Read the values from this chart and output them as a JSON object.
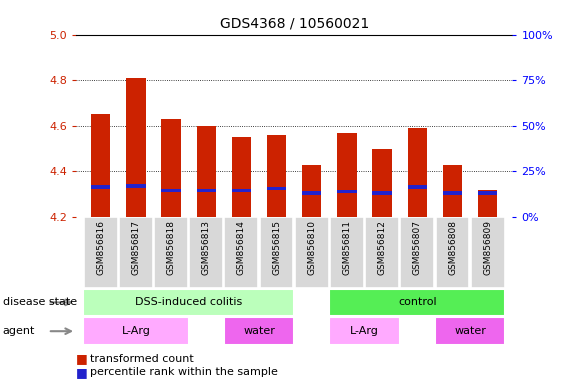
{
  "title": "GDS4368 / 10560021",
  "samples": [
    "GSM856816",
    "GSM856817",
    "GSM856818",
    "GSM856813",
    "GSM856814",
    "GSM856815",
    "GSM856810",
    "GSM856811",
    "GSM856812",
    "GSM856807",
    "GSM856808",
    "GSM856809"
  ],
  "bar_bottoms": [
    4.2,
    4.2,
    4.2,
    4.2,
    4.2,
    4.2,
    4.2,
    4.2,
    4.2,
    4.2,
    4.2,
    4.2
  ],
  "bar_tops": [
    4.65,
    4.81,
    4.63,
    4.6,
    4.55,
    4.56,
    4.43,
    4.57,
    4.5,
    4.59,
    4.43,
    4.32
  ],
  "percentile_vals": [
    4.332,
    4.336,
    4.316,
    4.316,
    4.316,
    4.326,
    4.306,
    4.311,
    4.306,
    4.332,
    4.306,
    4.306
  ],
  "ylim_left": [
    4.2,
    5.0
  ],
  "yticks_left": [
    4.2,
    4.4,
    4.6,
    4.8,
    5.0
  ],
  "yticks_right": [
    0,
    25,
    50,
    75,
    100
  ],
  "bar_color": "#cc2200",
  "percentile_color": "#2222cc",
  "bar_width": 0.55,
  "disease_state_labels": [
    "DSS-induced colitis",
    "control"
  ],
  "disease_state_xmins": [
    -0.5,
    6.5
  ],
  "disease_state_xmaxs": [
    5.5,
    11.5
  ],
  "agent_labels": [
    "L-Arg",
    "water",
    "L-Arg",
    "water"
  ],
  "agent_xmins": [
    -0.5,
    3.5,
    6.5,
    9.5
  ],
  "agent_xmaxs": [
    2.5,
    5.5,
    8.5,
    11.5
  ],
  "disease_color_left": "#bbffbb",
  "disease_color_right": "#55ee55",
  "agent_color_light": "#ffaaff",
  "agent_color_dark": "#ee66ee",
  "gray_box_color": "#d8d8d8",
  "legend_red_label": "transformed count",
  "legend_blue_label": "percentile rank within the sample",
  "disease_label": "disease state",
  "agent_label": "agent",
  "grid_yticks": [
    4.4,
    4.6,
    4.8
  ]
}
